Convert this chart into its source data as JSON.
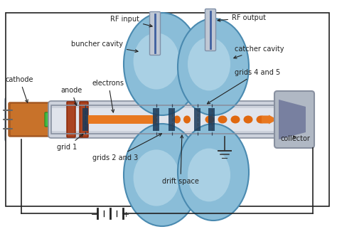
{
  "labels": {
    "cathode": "cathode",
    "anode": "anode",
    "electrons": "electrons",
    "grid1": "grid 1",
    "grids23": "grids 2 and 3",
    "buncher_cavity": "buncher cavity",
    "catcher_cavity": "catcher cavity",
    "grids45": "grids 4 and 5",
    "drift_space": "drift space",
    "collector": "collector",
    "rf_input": "RF input",
    "rf_output": "RF output"
  },
  "colors": {
    "white": "#ffffff",
    "cathode_orange": "#c8722a",
    "cathode_dark": "#a05520",
    "green_tip": "#44bb44",
    "sleeve_gray": "#c8cdd8",
    "sleeve_edge": "#8899aa",
    "anode_brown": "#aa4422",
    "tube_gray": "#cdd2dc",
    "tube_edge": "#8890a0",
    "cavity_blue1": "#8abdd8",
    "cavity_blue2": "#6aaac8",
    "cavity_blue3": "#aacce0",
    "cavity_highlight": "#c8e4f0",
    "cavity_dark": "#4a8ab0",
    "beam_orange": "#e87820",
    "beam_dot": "#e06810",
    "grid_blue": "#1a3a5a",
    "coll_gray1": "#b0b8c4",
    "coll_gray2": "#8890a0",
    "coll_inner": "#7880a0",
    "rf_gray": "#c0c8d4",
    "rf_edge": "#8090a8",
    "rf_blue": "#4060a0",
    "wire": "#222222",
    "text": "#222222",
    "ground": "#333333",
    "bg": "#ffffff"
  },
  "layout": {
    "fig_w": 4.74,
    "fig_h": 3.36,
    "dpi": 100
  }
}
